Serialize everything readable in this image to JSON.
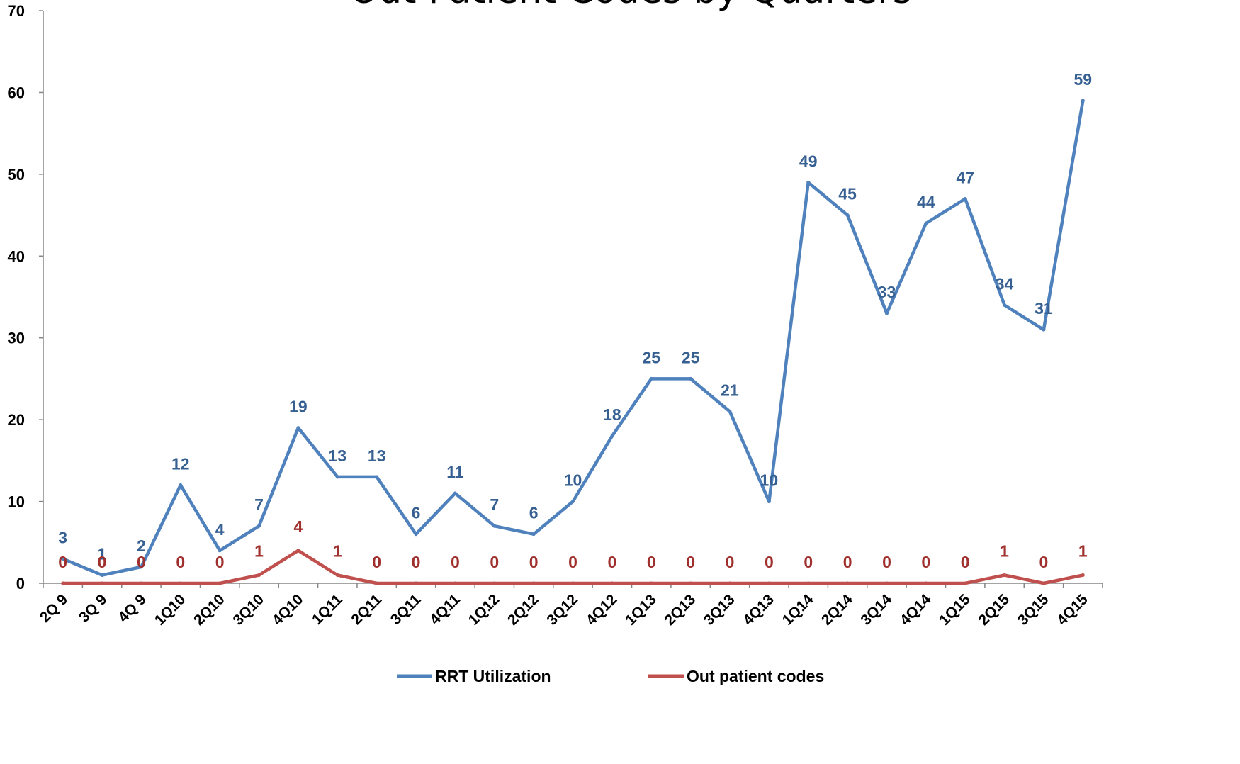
{
  "chart_data": {
    "type": "line",
    "title": "Out Patient Codes by Quarters",
    "xlabel": "",
    "ylabel": "",
    "ylim": [
      0,
      70
    ],
    "yticks": [
      0,
      10,
      20,
      30,
      40,
      50,
      60,
      70
    ],
    "grid": false,
    "legend_position": "bottom",
    "categories": [
      "2Q 9",
      "3Q 9",
      "4Q 9",
      "1Q10",
      "2Q10",
      "3Q10",
      "4Q10",
      "1Q11",
      "2Q11",
      "3Q11",
      "4Q11",
      "1Q12",
      "2Q12",
      "3Q12",
      "4Q12",
      "1Q13",
      "2Q13",
      "3Q13",
      "4Q13",
      "1Q14",
      "2Q14",
      "3Q14",
      "4Q14",
      "1Q15",
      "2Q15",
      "3Q15",
      "4Q15"
    ],
    "series": [
      {
        "name": "RRT Utilization",
        "color": "#4F81BD",
        "label_color": "#376092",
        "values": [
          3,
          1,
          2,
          12,
          4,
          7,
          19,
          13,
          13,
          6,
          11,
          7,
          6,
          10,
          18,
          25,
          25,
          21,
          10,
          49,
          45,
          33,
          44,
          47,
          34,
          31,
          59
        ]
      },
      {
        "name": "Out patient codes",
        "color": "#C0504D",
        "label_color": "#A0302D",
        "values": [
          0,
          0,
          0,
          0,
          0,
          1,
          4,
          1,
          0,
          0,
          0,
          0,
          0,
          0,
          0,
          0,
          0,
          0,
          0,
          0,
          0,
          0,
          0,
          0,
          1,
          0,
          1
        ]
      }
    ]
  }
}
